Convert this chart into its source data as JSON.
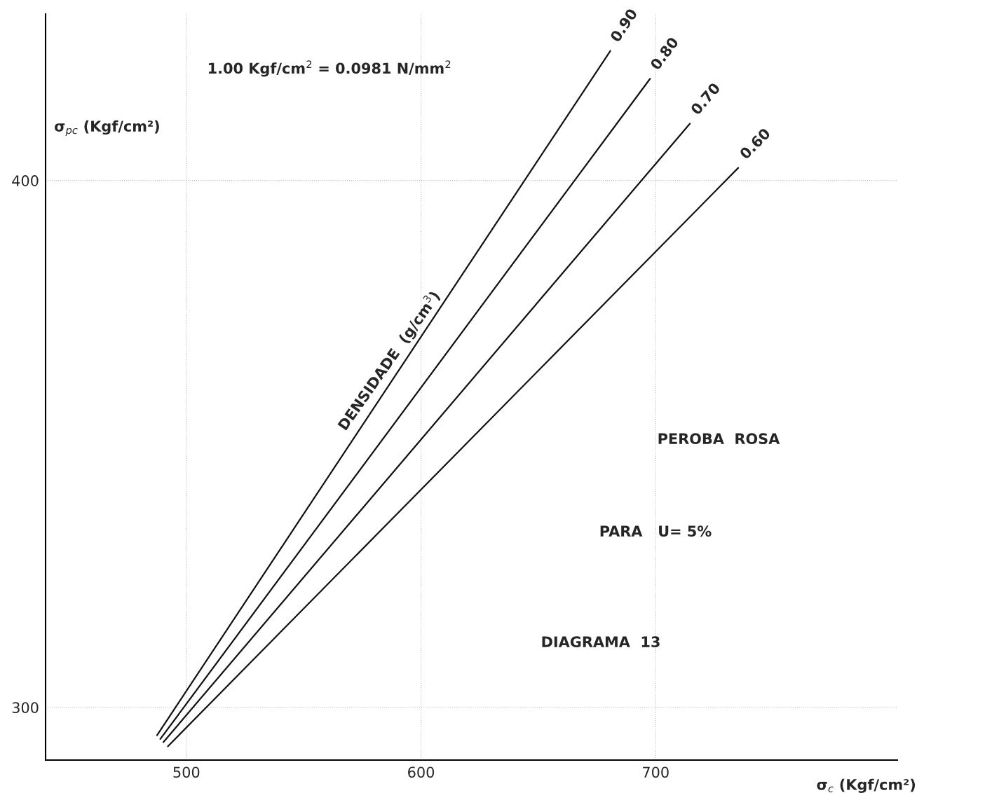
{
  "chart_data": {
    "type": "line",
    "xlabel": "σ$_{c}$ (Kgf/cm²)",
    "ylabel": "σ$_{pc}$ (Kgf/cm²)",
    "xlim": [
      440,
      803
    ],
    "ylim": [
      290,
      431.6
    ],
    "xticks": [
      500,
      600,
      700
    ],
    "yticks": [
      300,
      400
    ],
    "grid": true,
    "legend": false,
    "marker": "none",
    "line_style": "solid",
    "series": [
      {
        "name": "0.90",
        "color": "#111111",
        "x": [
          487.5,
          680.7
        ],
        "values": [
          294.7,
          424.6
        ]
      },
      {
        "name": "0.80",
        "color": "#111111",
        "x": [
          488.9,
          697.6
        ],
        "values": [
          294.0,
          419.3
        ]
      },
      {
        "name": "0.70",
        "color": "#111111",
        "x": [
          490.2,
          714.6
        ],
        "values": [
          293.4,
          410.8
        ]
      },
      {
        "name": "0.60",
        "color": "#111111",
        "x": [
          492.1,
          735.2
        ],
        "values": [
          292.6,
          402.4
        ]
      }
    ],
    "annotations": [
      {
        "text": "1.00 Kgf/cm$^{2}$ = 0.0981 N/mm$^{2}$"
      },
      {
        "text": "DENSIDADE  (g/cm$^{3}$)"
      },
      {
        "text": "PEROBA  ROSA"
      },
      {
        "text": "PARA   U= 5%"
      },
      {
        "text": "DIAGRAMA  13"
      }
    ]
  }
}
